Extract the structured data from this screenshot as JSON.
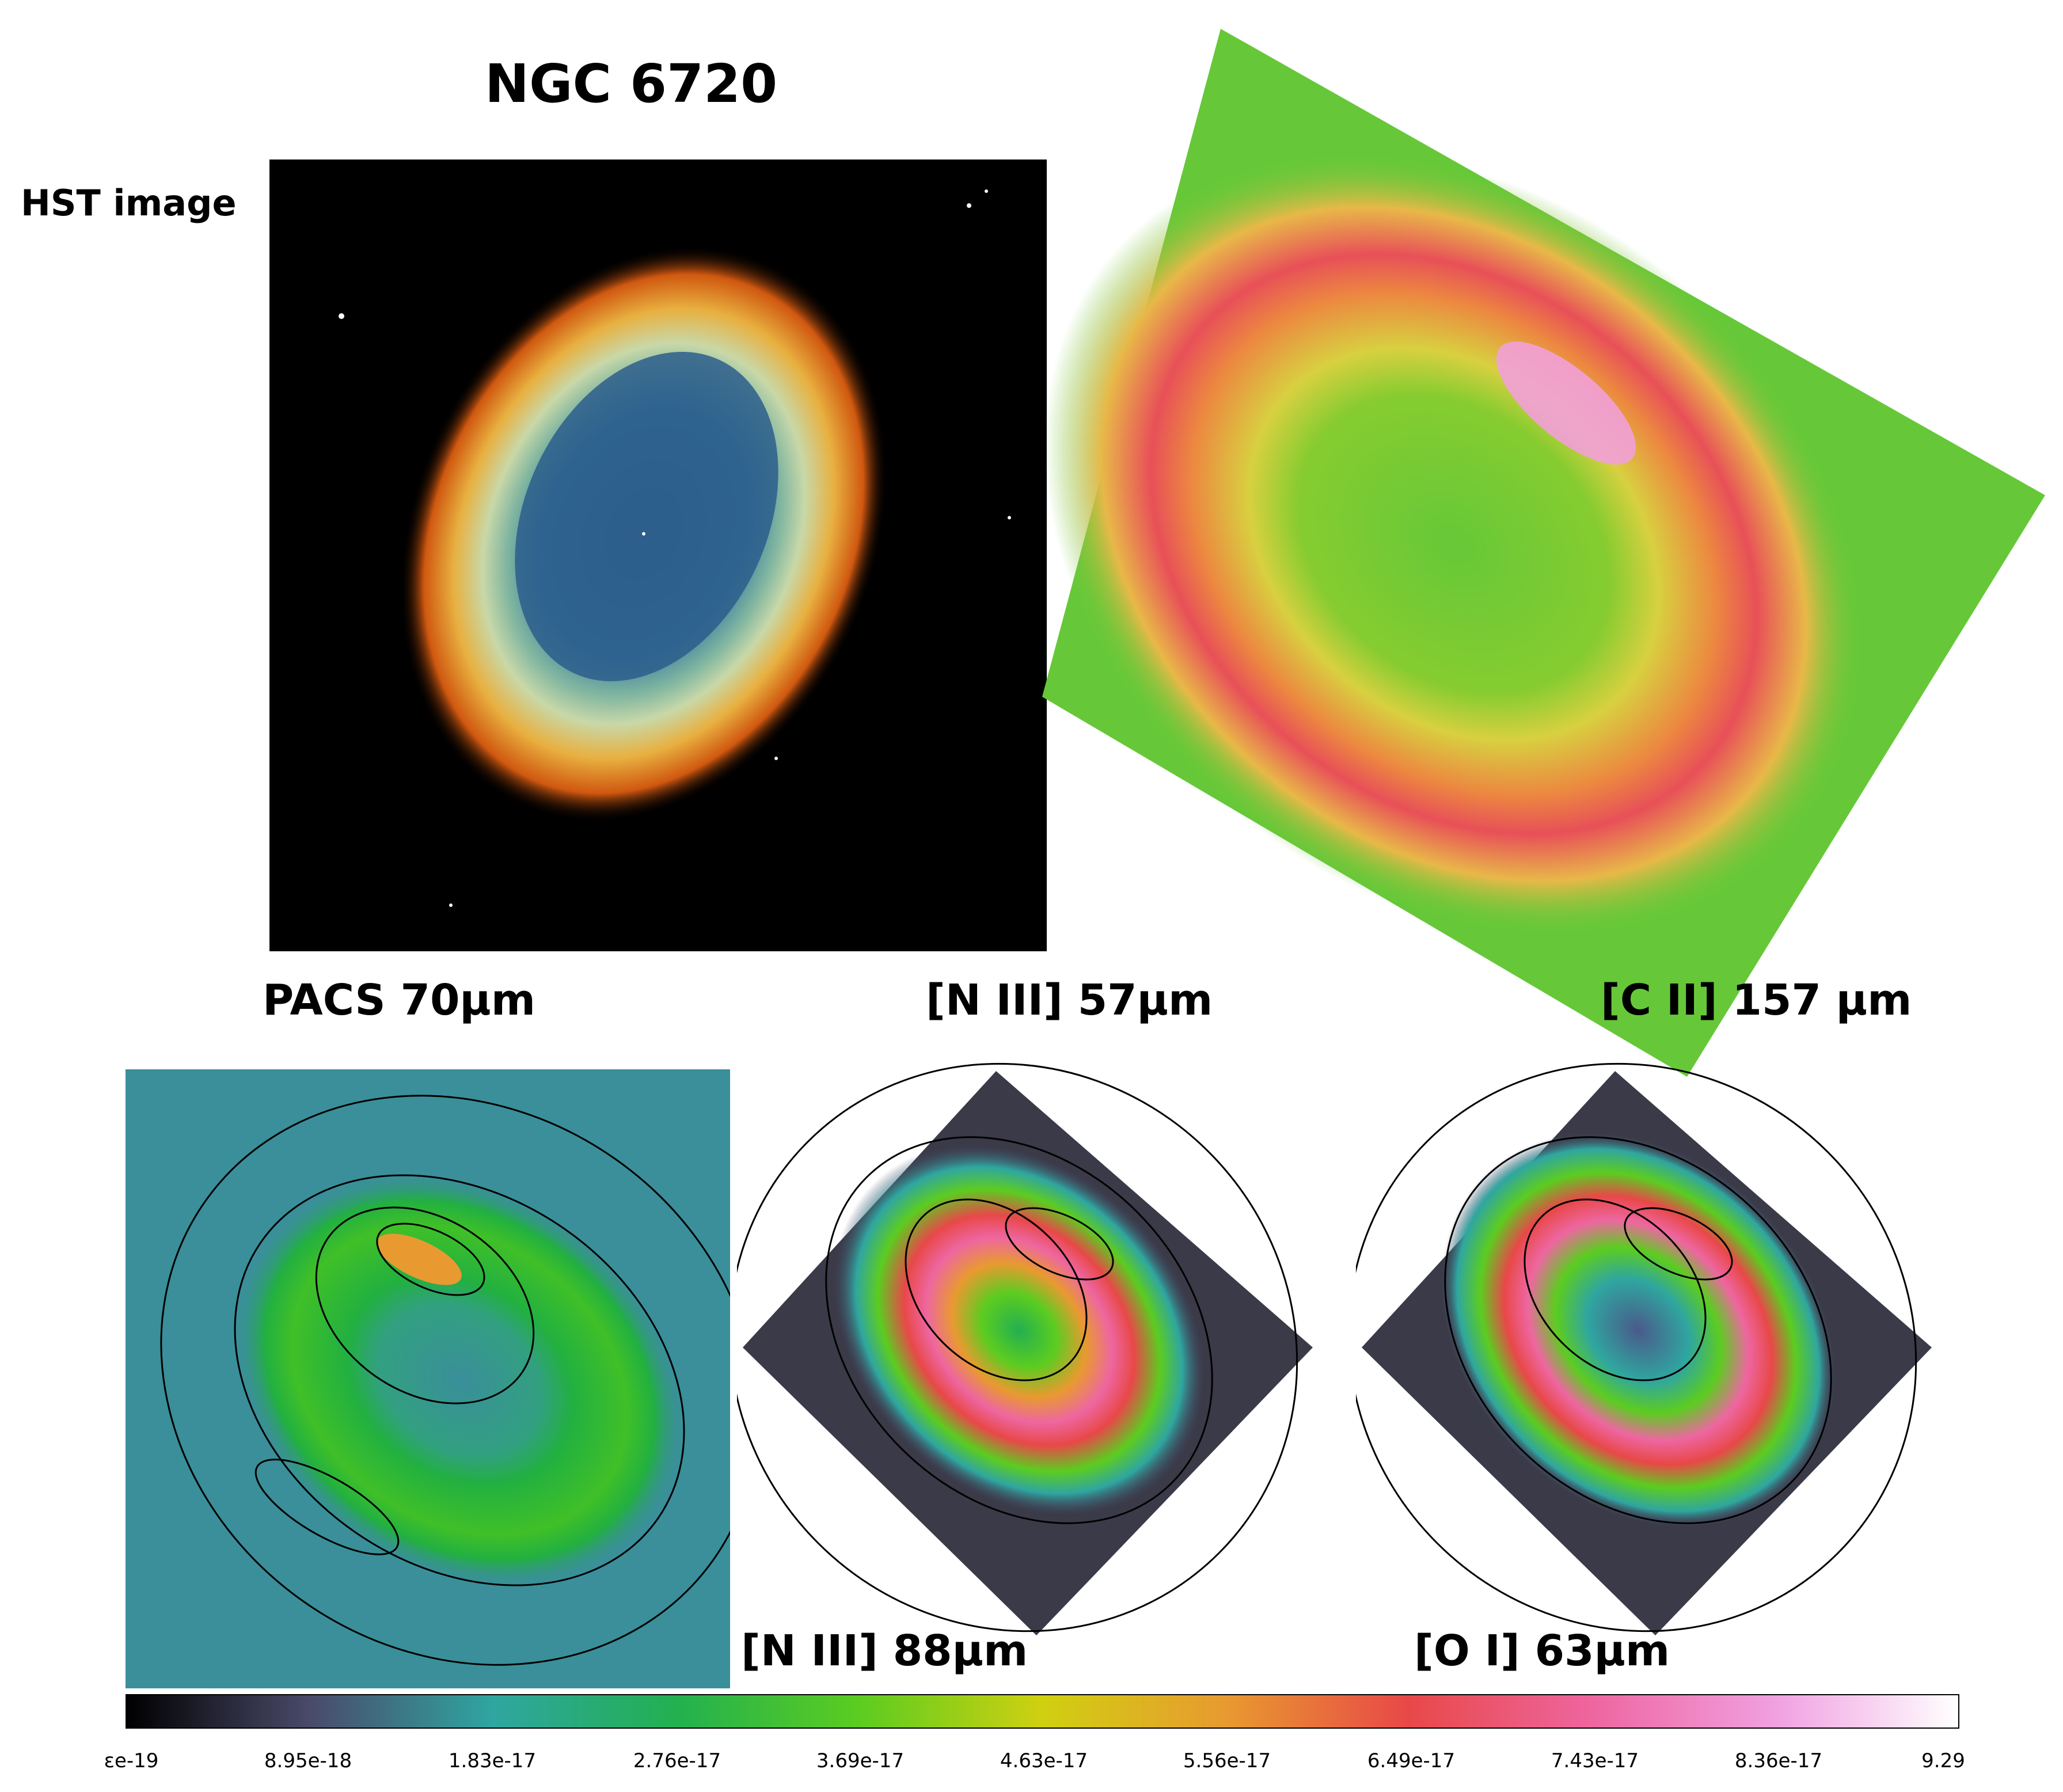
{
  "title": "NGC 6720",
  "panels": {
    "hst": "HST image",
    "pacs": "PACS 70µm",
    "n3_57": "[N III] 57µm",
    "c2_157": "[C II] 157 µm",
    "n3_88": "[N III] 88µm",
    "o1_63": "[O I] 63µm"
  },
  "colorbar": {
    "ticks": [
      "ɛe-19",
      "8.95e-18",
      "1.83e-17",
      "2.76e-17",
      "3.69e-17",
      "4.63e-17",
      "5.56e-17",
      "6.49e-17",
      "7.43e-17",
      "8.36e-17",
      "9.29"
    ]
  },
  "colors": {
    "cii_background": "#66c838",
    "pacs_background": "#3a8f9a",
    "colormap": [
      "#000000",
      "#4a4a6a",
      "#2fa6a0",
      "#22b050",
      "#5ccc20",
      "#d0d010",
      "#e89a30",
      "#e84848",
      "#ee66a0",
      "#f0a0e0",
      "#ffffff"
    ]
  }
}
